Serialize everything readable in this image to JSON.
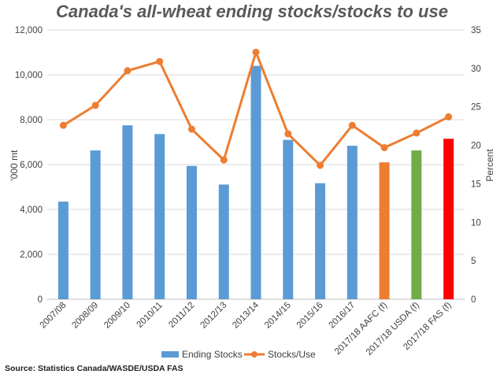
{
  "chart_data": {
    "type": "bar",
    "title": "Canada's all-wheat ending stocks/stocks to use",
    "categories": [
      "2007/08",
      "2008/09",
      "2009/10",
      "2010/11",
      "2011/12",
      "2012/13",
      "2013/14",
      "2014/15",
      "2015/16",
      "2016/17",
      "2017/18 AAFC (f)",
      "2017/18 USDA (f)",
      "2017/18 FAS (f)"
    ],
    "series": [
      {
        "name": "Ending Stocks",
        "type": "bar",
        "axis": "left",
        "color": "#5b9bd5",
        "bar_colors": [
          "#5b9bd5",
          "#5b9bd5",
          "#5b9bd5",
          "#5b9bd5",
          "#5b9bd5",
          "#5b9bd5",
          "#5b9bd5",
          "#5b9bd5",
          "#5b9bd5",
          "#5b9bd5",
          "#ed7d31",
          "#70ad47",
          "#ff0000"
        ],
        "values": [
          4350,
          6630,
          7750,
          7360,
          5940,
          5110,
          10400,
          7100,
          5170,
          6840,
          6100,
          6630,
          7150
        ]
      },
      {
        "name": "Stocks/Use",
        "type": "line",
        "axis": "right",
        "color": "#ed7d31",
        "values": [
          22.6,
          25.2,
          29.7,
          30.9,
          22.1,
          18.1,
          32.1,
          21.5,
          17.4,
          22.6,
          19.7,
          21.6,
          23.7
        ]
      }
    ],
    "ylabel": "'000 mt",
    "ylabel_right": "Percent",
    "ylim": [
      0,
      12000
    ],
    "yticks": [
      "0",
      "2,000",
      "4,000",
      "6,000",
      "8,000",
      "10,000",
      "12,000"
    ],
    "ylim_right": [
      0,
      35
    ],
    "yticks_right": [
      "0",
      "5",
      "10",
      "15",
      "20",
      "25",
      "30",
      "35"
    ],
    "grid": true,
    "legend_position": "bottom"
  },
  "source": "Source: Statistics Canada/WASDE/USDA FAS"
}
